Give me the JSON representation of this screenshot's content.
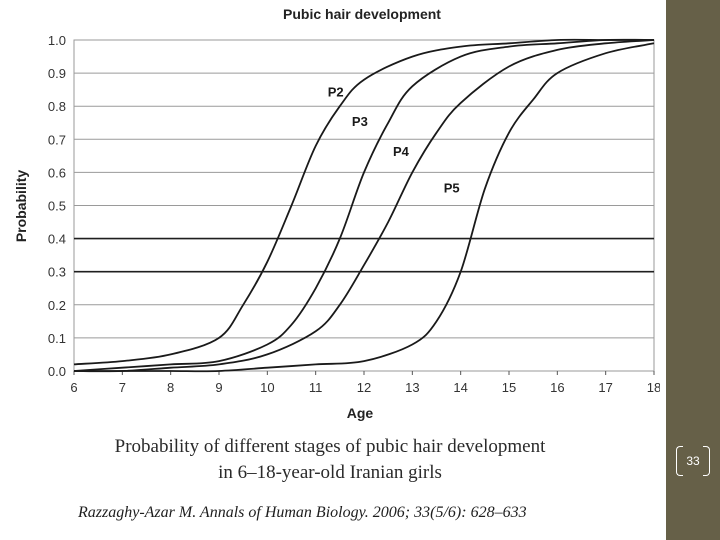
{
  "chart_data": {
    "type": "line",
    "title": "Pubic hair development",
    "xlabel": "Age",
    "ylabel": "Probability",
    "xlim": [
      6,
      18
    ],
    "ylim": [
      0,
      1
    ],
    "x_ticks": [
      6,
      7,
      8,
      9,
      10,
      11,
      12,
      13,
      14,
      15,
      16,
      17,
      18
    ],
    "y_ticks": [
      "0.0",
      "0.1",
      "0.2",
      "0.3",
      "0.4",
      "0.5",
      "0.6",
      "0.7",
      "0.8",
      "0.9",
      "1.0"
    ],
    "grid": true,
    "series": [
      {
        "name": "P2",
        "x": [
          6,
          7,
          8,
          9,
          9.5,
          10,
          10.5,
          11,
          11.5,
          12,
          13,
          14,
          15,
          16,
          17,
          18
        ],
        "y": [
          0.02,
          0.03,
          0.05,
          0.1,
          0.2,
          0.33,
          0.5,
          0.68,
          0.8,
          0.88,
          0.95,
          0.98,
          0.99,
          1.0,
          1.0,
          1.0
        ]
      },
      {
        "name": "P3",
        "x": [
          6,
          7,
          8,
          9,
          10,
          10.5,
          11,
          11.5,
          12,
          12.5,
          13,
          14,
          15,
          16,
          17,
          18
        ],
        "y": [
          0.0,
          0.01,
          0.02,
          0.03,
          0.08,
          0.14,
          0.25,
          0.4,
          0.6,
          0.75,
          0.86,
          0.95,
          0.98,
          0.99,
          1.0,
          1.0
        ]
      },
      {
        "name": "P4",
        "x": [
          6,
          7,
          8,
          9,
          10,
          11,
          11.5,
          12,
          12.5,
          13,
          13.5,
          14,
          15,
          16,
          17,
          18
        ],
        "y": [
          0.0,
          0.0,
          0.01,
          0.02,
          0.05,
          0.12,
          0.2,
          0.32,
          0.45,
          0.6,
          0.72,
          0.81,
          0.92,
          0.97,
          0.99,
          1.0
        ]
      },
      {
        "name": "P5",
        "x": [
          6,
          7,
          8,
          9,
          10,
          11,
          12,
          13,
          13.5,
          14,
          14.5,
          15,
          15.5,
          16,
          17,
          18
        ],
        "y": [
          0.0,
          0.0,
          0.0,
          0.0,
          0.01,
          0.02,
          0.03,
          0.08,
          0.15,
          0.3,
          0.55,
          0.72,
          0.82,
          0.9,
          0.96,
          0.99
        ]
      }
    ]
  },
  "caption": {
    "line1": "Probability of different stages of pubic hair development",
    "line2": "in 6–18-year-old Iranian girls"
  },
  "citation": "Razzaghy-Azar M. Annals of Human Biology. 2006; 33(5/6): 628–633",
  "slide_number": "33",
  "colors": {
    "sidebar": "#666048",
    "line": "#1a1a1a",
    "text": "#2a2a2a"
  }
}
